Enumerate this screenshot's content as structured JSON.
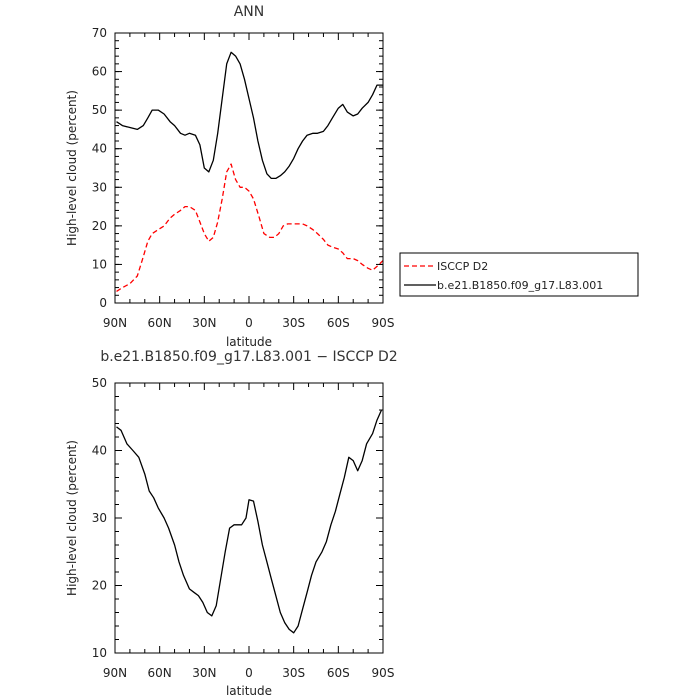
{
  "chart_data": [
    {
      "type": "line",
      "title": "ANN",
      "xlabel": "latitude",
      "ylabel": "High-level cloud (percent)",
      "xlim": [
        90,
        -90
      ],
      "ylim": [
        0,
        70
      ],
      "xticks": [
        90,
        60,
        30,
        0,
        -30,
        -60,
        -90
      ],
      "xticklabels": [
        "90N",
        "60N",
        "30N",
        "0",
        "30S",
        "60S",
        "90S"
      ],
      "yticks": [
        0,
        10,
        20,
        30,
        40,
        50,
        60,
        70
      ],
      "yticklabels": [
        "0",
        "10",
        "20",
        "30",
        "40",
        "50",
        "60",
        "70"
      ],
      "grid": false,
      "legend_placement": "outside-right",
      "series": [
        {
          "name": "ISCCP D2",
          "color": "#ff0000",
          "dash": "dashed",
          "x": [
            89,
            85,
            80,
            75,
            71,
            68,
            65,
            61,
            57,
            53,
            50,
            46,
            43,
            40,
            36,
            33,
            30,
            27,
            24,
            21,
            18,
            15,
            12,
            9,
            6,
            3,
            0,
            -3,
            -7,
            -10,
            -14,
            -17,
            -20,
            -23,
            -26,
            -29,
            -32,
            -36,
            -39,
            -43,
            -46,
            -50,
            -53,
            -56,
            -60,
            -63,
            -66,
            -70,
            -73,
            -76,
            -80,
            -83,
            -86,
            -90
          ],
          "y": [
            3,
            4,
            5,
            7,
            12,
            16,
            18,
            19,
            20,
            22,
            23,
            24,
            25,
            25,
            24,
            21,
            18,
            16,
            17,
            21,
            27,
            34,
            36,
            32,
            30,
            30,
            29,
            27,
            22,
            18,
            17,
            17,
            18,
            20,
            20.5,
            20.5,
            20.5,
            20.5,
            20,
            19,
            18,
            16.5,
            15,
            14.5,
            14,
            13,
            11.5,
            11.5,
            11,
            10,
            9,
            8.5,
            9.5,
            11
          ]
        },
        {
          "name": "b.e21.B1850.f09_g17.L83.001",
          "color": "#000000",
          "dash": "solid",
          "x": [
            89,
            85,
            80,
            75,
            71,
            68,
            65,
            61,
            57,
            53,
            50,
            46,
            43,
            40,
            36,
            33,
            30,
            27,
            24,
            21,
            18,
            15,
            12,
            9,
            6,
            3,
            0,
            -3,
            -6,
            -9,
            -12,
            -15,
            -18,
            -21,
            -24,
            -27,
            -30,
            -33,
            -36,
            -39,
            -43,
            -46,
            -50,
            -53,
            -56,
            -60,
            -63,
            -66,
            -70,
            -73,
            -76,
            -80,
            -83,
            -86,
            -90
          ],
          "y": [
            47,
            46,
            45.5,
            45,
            46,
            48,
            50,
            50,
            49,
            47,
            46,
            44,
            43.5,
            44,
            43.5,
            41,
            35,
            34,
            37,
            44,
            53,
            62,
            65,
            64,
            62,
            58,
            53,
            48,
            42,
            37,
            33.5,
            32.3,
            32.3,
            33,
            34,
            35.5,
            37.5,
            40,
            42,
            43.5,
            44,
            44,
            44.5,
            46,
            48,
            50.5,
            51.5,
            49.5,
            48.5,
            49,
            50.5,
            52,
            54,
            56.5,
            56.5
          ]
        }
      ],
      "legend": [
        {
          "label": "ISCCP D2",
          "color": "#ff0000",
          "dash": "dashed"
        },
        {
          "label": "b.e21.B1850.f09_g17.L83.001",
          "color": "#000000",
          "dash": "solid"
        }
      ]
    },
    {
      "type": "line",
      "title": "b.e21.B1850.f09_g17.L83.001 − ISCCP D2",
      "xlabel": "latitude",
      "ylabel": "High-level cloud (percent)",
      "xlim": [
        90,
        -90
      ],
      "ylim": [
        10,
        50
      ],
      "xticks": [
        90,
        60,
        30,
        0,
        -30,
        -60,
        -90
      ],
      "xticklabels": [
        "90N",
        "60N",
        "30N",
        "0",
        "30S",
        "60S",
        "90S"
      ],
      "yticks": [
        10,
        20,
        30,
        40,
        50
      ],
      "yticklabels": [
        "10",
        "20",
        "30",
        "40",
        "50"
      ],
      "grid": false,
      "series": [
        {
          "color": "#000000",
          "dash": "solid",
          "x": [
            89,
            86,
            82,
            78,
            74,
            70,
            67,
            64,
            61,
            57,
            54,
            50,
            47,
            44,
            40,
            37,
            34,
            31,
            28,
            25,
            22,
            19,
            16,
            13,
            10,
            7,
            5,
            2,
            0,
            -3,
            -6,
            -9,
            -12,
            -15,
            -18,
            -21,
            -24,
            -27,
            -30,
            -33,
            -36,
            -39,
            -42,
            -45,
            -49,
            -52,
            -55,
            -58,
            -61,
            -64,
            -67,
            -70,
            -73,
            -76,
            -79,
            -83,
            -86,
            -89
          ],
          "y": [
            43.5,
            43,
            41,
            40,
            39,
            36.5,
            34,
            33,
            31.5,
            30,
            28.5,
            26,
            23.5,
            21.5,
            19.5,
            19,
            18.5,
            17.5,
            16,
            15.5,
            17,
            21,
            25,
            28.5,
            29,
            29,
            29,
            30,
            32.7,
            32.5,
            29.5,
            26,
            23.5,
            21,
            18.5,
            16,
            14.5,
            13.5,
            13,
            14,
            16.5,
            19,
            21.5,
            23.5,
            25,
            26.5,
            29,
            31,
            33.5,
            36,
            39,
            38.5,
            37,
            38.5,
            41,
            42.5,
            44.5,
            46
          ]
        }
      ]
    }
  ]
}
